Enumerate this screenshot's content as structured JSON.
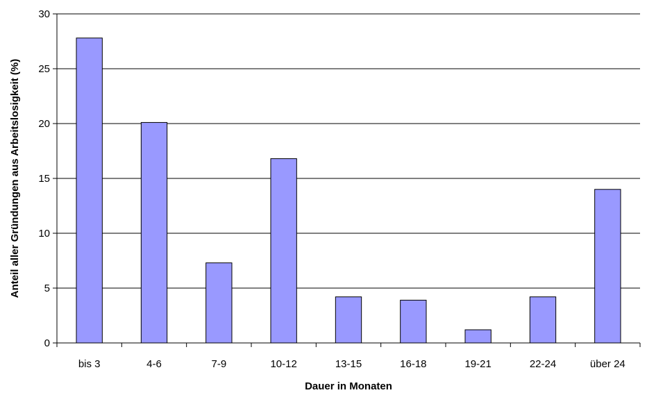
{
  "chart_data": {
    "type": "bar",
    "categories": [
      "bis 3",
      "4-6",
      "7-9",
      "10-12",
      "13-15",
      "16-18",
      "19-21",
      "22-24",
      "über 24"
    ],
    "values": [
      27.8,
      20.1,
      7.3,
      16.8,
      4.2,
      3.9,
      1.2,
      4.2,
      14.0
    ],
    "xlabel": "Dauer in Monaten",
    "ylabel": "Anteil aller Gründungen aus Arbeitslosigkeit (%)",
    "ylim": [
      0,
      30
    ],
    "yticks": [
      0,
      5,
      10,
      15,
      20,
      25,
      30
    ],
    "grid": true,
    "legend": "none",
    "colors": {
      "bar_fill": "#9999ff",
      "bar_stroke": "#000000",
      "grid": "#000000",
      "axis": "#000000"
    }
  }
}
